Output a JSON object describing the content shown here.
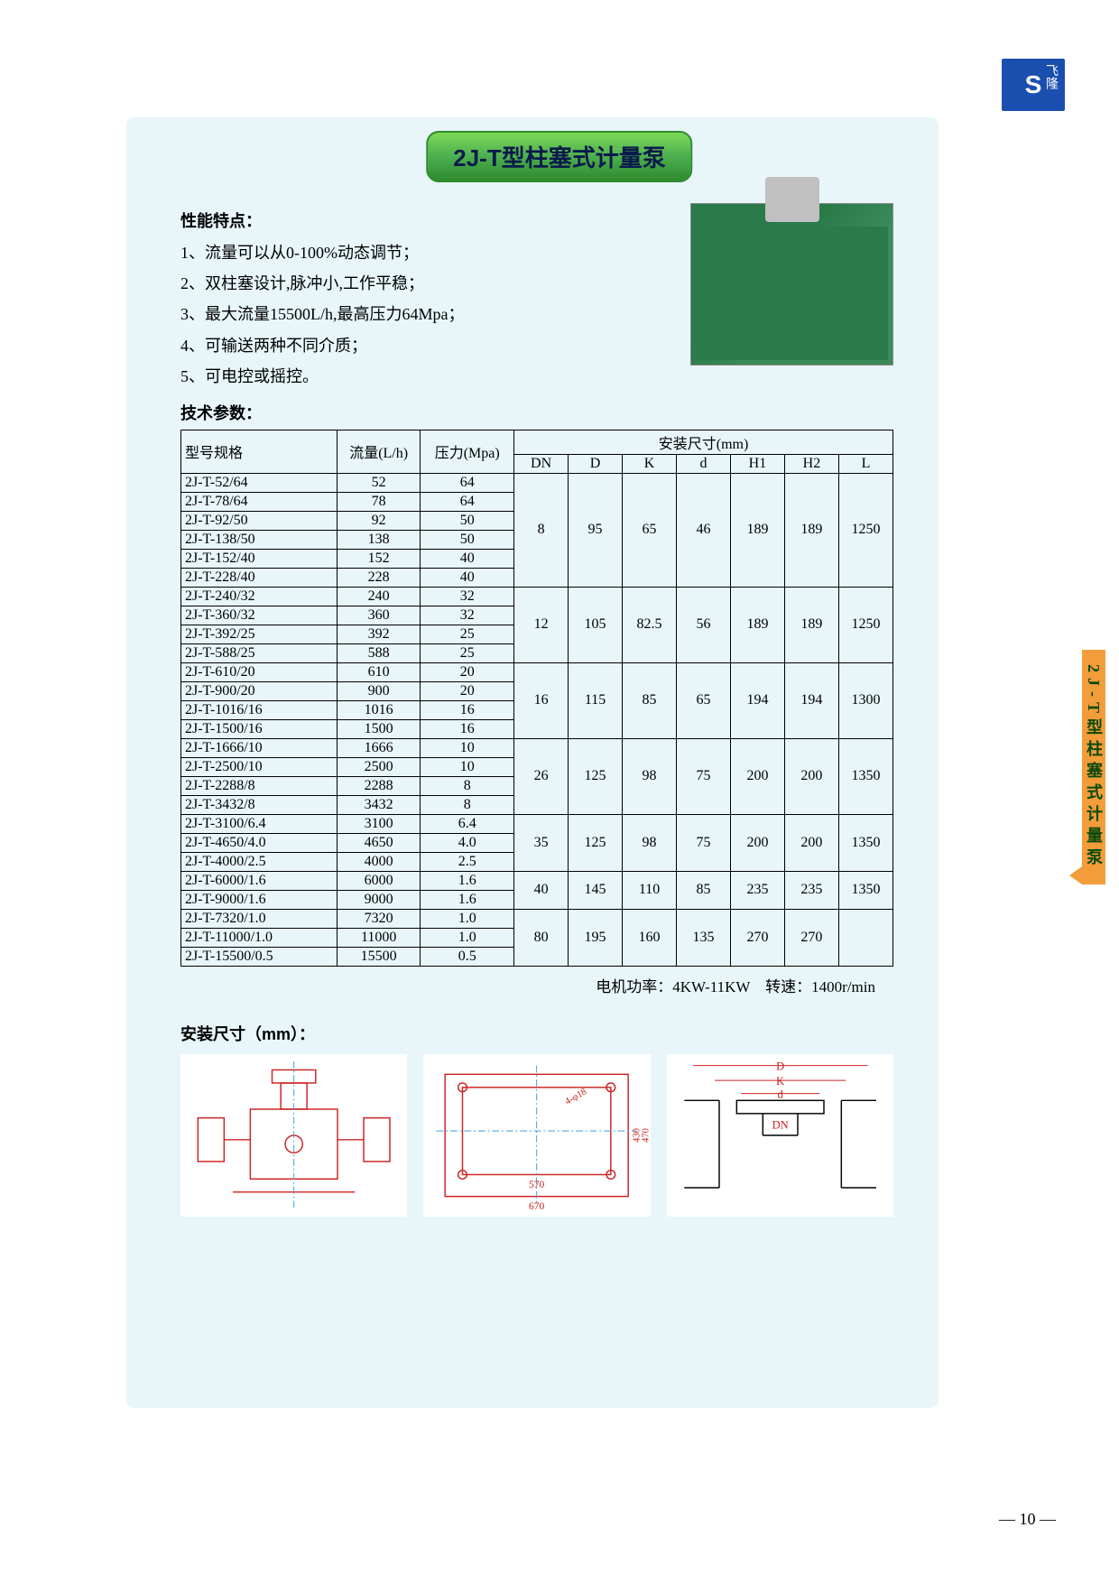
{
  "logo": {
    "glyph": "S",
    "brand": "飞隆"
  },
  "title": "2J-T型柱塞式计量泵",
  "features": {
    "heading": "性能特点：",
    "items": [
      "1、流量可以从0-100%动态调节；",
      "2、双柱塞设计,脉冲小,工作平稳；",
      "3、最大流量15500L/h,最高压力64Mpa；",
      "4、可输送两种不同介质；",
      "5、可电控或摇控。"
    ]
  },
  "params_heading": "技术参数：",
  "table": {
    "headers": {
      "model": "型号规格",
      "flow": "流量(L/h)",
      "pressure": "压力(Mpa)",
      "dims_group": "安装尺寸(mm)",
      "dims": [
        "DN",
        "D",
        "K",
        "d",
        "H1",
        "H2",
        "L"
      ]
    },
    "groups": [
      {
        "rows": [
          {
            "model": "2J-T-52/64",
            "flow": "52",
            "press": "64"
          },
          {
            "model": "2J-T-78/64",
            "flow": "78",
            "press": "64"
          },
          {
            "model": "2J-T-92/50",
            "flow": "92",
            "press": "50"
          },
          {
            "model": "2J-T-138/50",
            "flow": "138",
            "press": "50"
          },
          {
            "model": "2J-T-152/40",
            "flow": "152",
            "press": "40"
          },
          {
            "model": "2J-T-228/40",
            "flow": "228",
            "press": "40"
          }
        ],
        "dims": [
          "8",
          "95",
          "65",
          "46",
          "189",
          "189",
          "1250"
        ]
      },
      {
        "rows": [
          {
            "model": "2J-T-240/32",
            "flow": "240",
            "press": "32"
          },
          {
            "model": "2J-T-360/32",
            "flow": "360",
            "press": "32"
          },
          {
            "model": "2J-T-392/25",
            "flow": "392",
            "press": "25"
          },
          {
            "model": "2J-T-588/25",
            "flow": "588",
            "press": "25"
          }
        ],
        "dims": [
          "12",
          "105",
          "82.5",
          "56",
          "189",
          "189",
          "1250"
        ]
      },
      {
        "rows": [
          {
            "model": "2J-T-610/20",
            "flow": "610",
            "press": "20"
          },
          {
            "model": "2J-T-900/20",
            "flow": "900",
            "press": "20"
          },
          {
            "model": "2J-T-1016/16",
            "flow": "1016",
            "press": "16"
          },
          {
            "model": "2J-T-1500/16",
            "flow": "1500",
            "press": "16"
          }
        ],
        "dims": [
          "16",
          "115",
          "85",
          "65",
          "194",
          "194",
          "1300"
        ]
      },
      {
        "rows": [
          {
            "model": "2J-T-1666/10",
            "flow": "1666",
            "press": "10"
          },
          {
            "model": "2J-T-2500/10",
            "flow": "2500",
            "press": "10"
          },
          {
            "model": "2J-T-2288/8",
            "flow": "2288",
            "press": "8"
          },
          {
            "model": "2J-T-3432/8",
            "flow": "3432",
            "press": "8"
          }
        ],
        "dims": [
          "26",
          "125",
          "98",
          "75",
          "200",
          "200",
          "1350"
        ]
      },
      {
        "rows": [
          {
            "model": "2J-T-3100/6.4",
            "flow": "3100",
            "press": "6.4"
          },
          {
            "model": "2J-T-4650/4.0",
            "flow": "4650",
            "press": "4.0"
          },
          {
            "model": "2J-T-4000/2.5",
            "flow": "4000",
            "press": "2.5"
          }
        ],
        "dims": [
          "35",
          "125",
          "98",
          "75",
          "200",
          "200",
          "1350"
        ]
      },
      {
        "rows": [
          {
            "model": "2J-T-6000/1.6",
            "flow": "6000",
            "press": "1.6"
          },
          {
            "model": "2J-T-9000/1.6",
            "flow": "9000",
            "press": "1.6"
          }
        ],
        "dims": [
          "40",
          "145",
          "110",
          "85",
          "235",
          "235",
          "1350"
        ]
      },
      {
        "rows": [
          {
            "model": "2J-T-7320/1.0",
            "flow": "7320",
            "press": "1.0"
          },
          {
            "model": "2J-T-11000/1.0",
            "flow": "11000",
            "press": "1.0"
          },
          {
            "model": "2J-T-15500/0.5",
            "flow": "15500",
            "press": "0.5"
          }
        ],
        "dims": [
          "80",
          "195",
          "160",
          "135",
          "270",
          "270",
          ""
        ]
      }
    ],
    "colors": {
      "border": "#000000",
      "bg": "transparent",
      "text": "#000000"
    }
  },
  "motor_note": "电机功率：4KW-11KW　转速：1400r/min",
  "dims_heading": "安装尺寸（mm）：",
  "diagrams": {
    "stroke": "#cc2222",
    "centerline": "#3aa0e0",
    "labels": {
      "d1_w": "570",
      "d1_h": "430",
      "d1_outer": "670",
      "d1_h2": "470",
      "d2_bolt": "4-φ18",
      "d3_D": "D",
      "d3_K": "K",
      "d3_d": "d",
      "d3_DN": "DN"
    }
  },
  "side_tab": "2J-T型柱塞式计量泵",
  "page_number": "— 10 —"
}
